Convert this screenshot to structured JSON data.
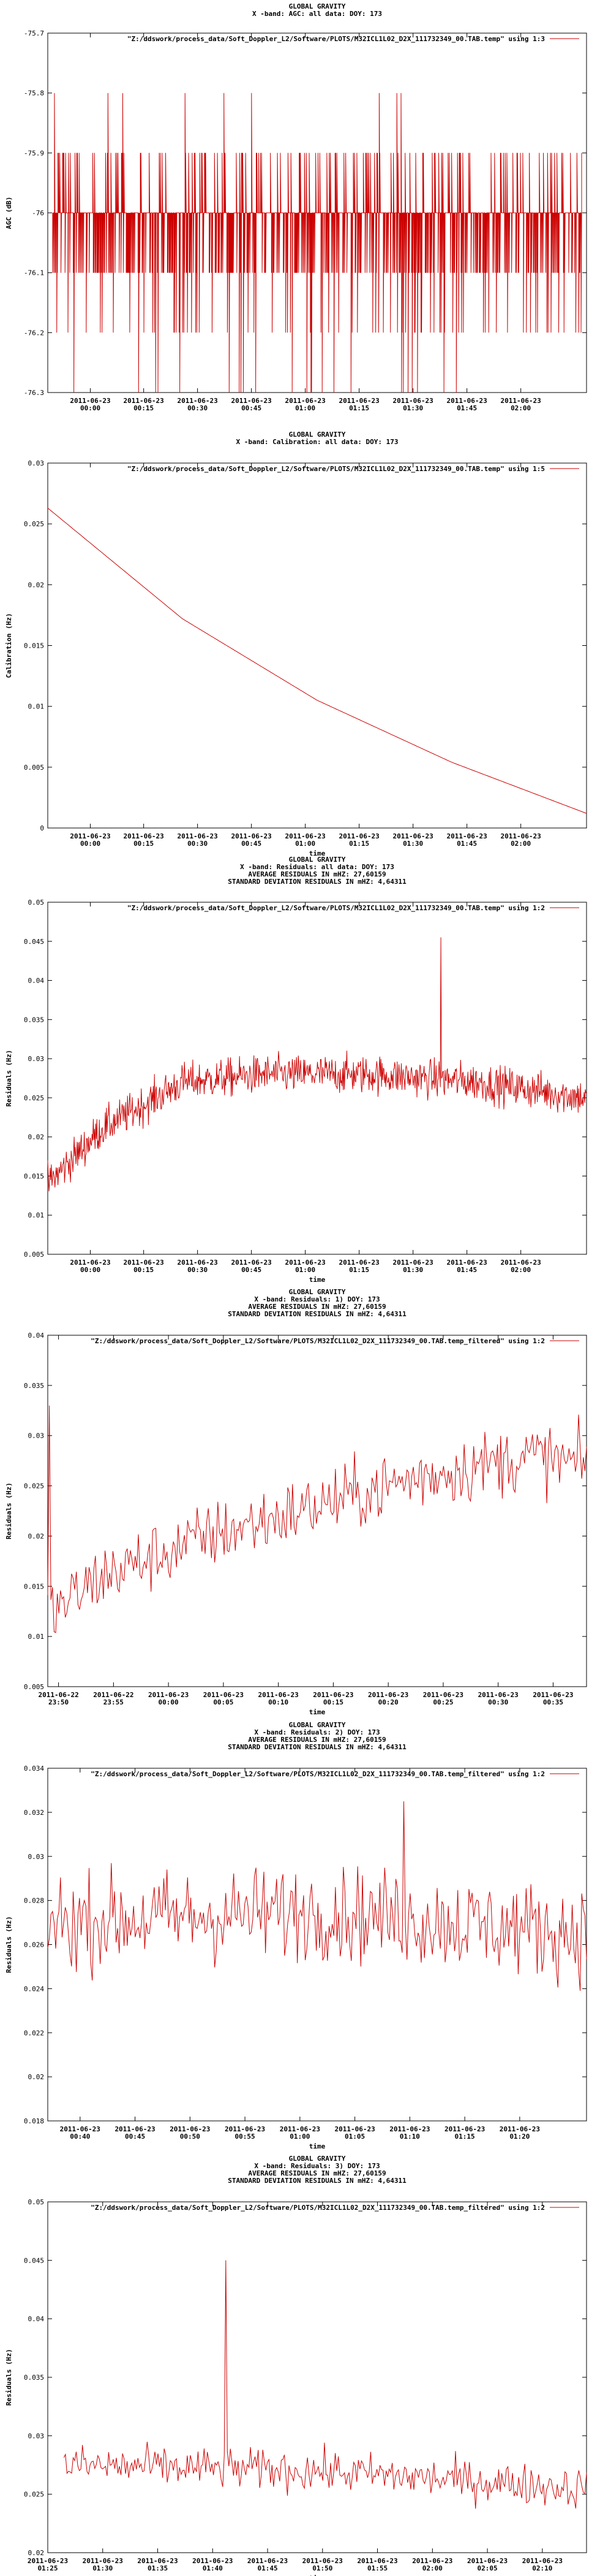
{
  "chart_data": [
    {
      "type": "line",
      "title": [
        "GLOBAL GRAVITY",
        "X -band: AGC: all data: DOY: 173"
      ],
      "legend": "\"Z:/ddswork/process_data/Soft_Doppler_L2/Software/PLOTS/M32ICL1L02_D2X_111732349_00.TAB.temp\" using 1:3",
      "legend_position": "top-right",
      "xlabel": "",
      "ylabel": "AGC (dB)",
      "ylim": [
        -76.3,
        -75.7
      ],
      "y_ticks": [
        "-76.3",
        "-76.2",
        "-76.1",
        "-76",
        "-75.9",
        "-75.8",
        "-75.7"
      ],
      "xlim": [
        "2011-06-22 23:49",
        "2011-06-23 02:14"
      ],
      "x_ticks": [
        [
          "2011-06-23",
          "00:00"
        ],
        [
          "2011-06-23",
          "00:15"
        ],
        [
          "2011-06-23",
          "00:30"
        ],
        [
          "2011-06-23",
          "00:45"
        ],
        [
          "2011-06-23",
          "01:00"
        ],
        [
          "2011-06-23",
          "01:15"
        ],
        [
          "2011-06-23",
          "01:30"
        ],
        [
          "2011-06-23",
          "01:45"
        ],
        [
          "2011-06-23",
          "02:00"
        ]
      ],
      "series": [
        {
          "levels": [
            -76.0,
            -76.1,
            -75.9,
            -76.2,
            -76.3,
            -75.8
          ],
          "baseline": -76.0
        }
      ],
      "color": "#cc0000"
    },
    {
      "type": "line",
      "title": [
        "GLOBAL GRAVITY",
        "X -band: Calibration: all data: DOY: 173"
      ],
      "legend": "\"Z:/ddswork/process_data/Soft_Doppler_L2/Software/PLOTS/M32ICL1L02_D2X_111732349_00.TAB.temp\" using 1:5",
      "legend_position": "top-right",
      "xlabel": "time",
      "ylabel": "Calibration (Hz)",
      "ylim": [
        0,
        0.03
      ],
      "y_ticks": [
        "0",
        "0.005",
        "0.01",
        "0.015",
        "0.02",
        "0.025",
        "0.03"
      ],
      "xlim": [
        "2011-06-22 23:49",
        "2011-06-23 02:14"
      ],
      "x_ticks": [
        [
          "2011-06-23",
          "00:00"
        ],
        [
          "2011-06-23",
          "00:15"
        ],
        [
          "2011-06-23",
          "00:30"
        ],
        [
          "2011-06-23",
          "00:45"
        ],
        [
          "2011-06-23",
          "01:00"
        ],
        [
          "2011-06-23",
          "01:15"
        ],
        [
          "2011-06-23",
          "01:30"
        ],
        [
          "2011-06-23",
          "01:45"
        ],
        [
          "2011-06-23",
          "02:00"
        ]
      ],
      "series": [
        {
          "x_min_from_start": [
            0,
            36,
            72,
            108,
            145
          ],
          "values": [
            0.0263,
            0.0172,
            0.0105,
            0.0054,
            0.0012
          ]
        }
      ],
      "color": "#cc0000"
    },
    {
      "type": "line",
      "title": [
        "GLOBAL GRAVITY",
        "X -band: Residuals: all data: DOY: 173",
        "AVERAGE RESIDUALS IN mHZ: 27,60159",
        "STANDARD DEVIATION RESIDUALS IN mHZ: 4,64311"
      ],
      "legend": "\"Z:/ddswork/process_data/Soft_Doppler_L2/Software/PLOTS/M32ICL1L02_D2X_111732349_00.TAB.temp\" using 1:2",
      "legend_position": "top-right",
      "xlabel": "time",
      "ylabel": "Residuals (Hz)",
      "ylim": [
        0.005,
        0.05
      ],
      "y_ticks": [
        "0.005",
        "0.01",
        "0.015",
        "0.02",
        "0.025",
        "0.03",
        "0.035",
        "0.04",
        "0.045",
        "0.05"
      ],
      "xlim": [
        "2011-06-22 23:49",
        "2011-06-23 02:14"
      ],
      "x_ticks": [
        [
          "2011-06-23",
          "00:00"
        ],
        [
          "2011-06-23",
          "00:15"
        ],
        [
          "2011-06-23",
          "00:30"
        ],
        [
          "2011-06-23",
          "00:45"
        ],
        [
          "2011-06-23",
          "01:00"
        ],
        [
          "2011-06-23",
          "01:15"
        ],
        [
          "2011-06-23",
          "01:30"
        ],
        [
          "2011-06-23",
          "01:45"
        ],
        [
          "2011-06-23",
          "02:00"
        ]
      ],
      "series": [
        {
          "x_frac": [
            0,
            0.1,
            0.25,
            0.4,
            0.6,
            0.8,
            1
          ],
          "values": [
            0.014,
            0.021,
            0.027,
            0.028,
            0.028,
            0.027,
            0.025
          ],
          "noise": 0.0025,
          "spike_at_frac": 0.73,
          "spike_value": 0.0455
        }
      ],
      "color": "#cc0000"
    },
    {
      "type": "line",
      "title": [
        "GLOBAL GRAVITY",
        "X -band: Residuals: 1) DOY: 173",
        "AVERAGE RESIDUALS IN mHZ: 27,60159",
        "STANDARD DEVIATION RESIDUALS IN mHZ: 4,64311"
      ],
      "legend": "\"Z:/ddswork/process_data/Soft_Doppler_L2/Software/PLOTS/M32ICL1L02_D2X_111732349_00.TAB.temp_filtered\" using 1:2",
      "legend_position": "top-right",
      "xlabel": "time",
      "ylabel": "Residuals (Hz)",
      "ylim": [
        0.005,
        0.04
      ],
      "y_ticks": [
        "0.005",
        "0.01",
        "0.015",
        "0.02",
        "0.025",
        "0.03",
        "0.035",
        "0.04"
      ],
      "xlim": [
        "2011-06-22 23:49",
        "2011-06-23 00:38"
      ],
      "x_ticks": [
        [
          "2011-06-22",
          "23:50"
        ],
        [
          "2011-06-22",
          "23:55"
        ],
        [
          "2011-06-23",
          "00:00"
        ],
        [
          "2011-06-23",
          "00:05"
        ],
        [
          "2011-06-23",
          "00:10"
        ],
        [
          "2011-06-23",
          "00:15"
        ],
        [
          "2011-06-23",
          "00:20"
        ],
        [
          "2011-06-23",
          "00:25"
        ],
        [
          "2011-06-23",
          "00:30"
        ],
        [
          "2011-06-23",
          "00:35"
        ]
      ],
      "series": [
        {
          "x_frac": [
            0,
            0.1,
            0.3,
            0.5,
            0.7,
            0.9,
            1
          ],
          "values": [
            0.012,
            0.016,
            0.02,
            0.023,
            0.026,
            0.028,
            0.027
          ],
          "noise": 0.0035,
          "spike_at_frac": 0.003,
          "spike_value": 0.033
        }
      ],
      "color": "#cc0000"
    },
    {
      "type": "line",
      "title": [
        "GLOBAL GRAVITY",
        "X -band: Residuals: 2) DOY: 173",
        "AVERAGE RESIDUALS IN mHZ: 27,60159",
        "STANDARD DEVIATION RESIDUALS IN mHZ: 4,64311"
      ],
      "legend": "\"Z:/ddswork/process_data/Soft_Doppler_L2/Software/PLOTS/M32ICL1L02_D2X_111732349_00.TAB.temp_filtered\" using 1:2",
      "legend_position": "top-right",
      "xlabel": "time",
      "ylabel": "Residuals (Hz)",
      "ylim": [
        0.018,
        0.034
      ],
      "y_ticks": [
        "0.018",
        "0.02",
        "0.022",
        "0.024",
        "0.026",
        "0.028",
        "0.03",
        "0.032",
        "0.034"
      ],
      "xlim": [
        "2011-06-23 00:37",
        "2011-06-23 01:26"
      ],
      "x_ticks": [
        [
          "2011-06-23",
          "00:40"
        ],
        [
          "2011-06-23",
          "00:45"
        ],
        [
          "2011-06-23",
          "00:50"
        ],
        [
          "2011-06-23",
          "00:55"
        ],
        [
          "2011-06-23",
          "01:00"
        ],
        [
          "2011-06-23",
          "01:05"
        ],
        [
          "2011-06-23",
          "01:10"
        ],
        [
          "2011-06-23",
          "01:15"
        ],
        [
          "2011-06-23",
          "01:20"
        ]
      ],
      "series": [
        {
          "x_frac": [
            0,
            0.5,
            1
          ],
          "values": [
            0.027,
            0.0275,
            0.0265
          ],
          "noise": 0.0022,
          "spike_at_frac": 0.66,
          "spike_value": 0.0325
        }
      ],
      "color": "#cc0000"
    },
    {
      "type": "line",
      "title": [
        "GLOBAL GRAVITY",
        "X -band: Residuals: 3) DOY: 173",
        "AVERAGE RESIDUALS IN mHZ: 27,60159",
        "STANDARD DEVIATION RESIDUALS IN mHZ: 4,64311"
      ],
      "legend": "\"Z:/ddswork/process_data/Soft_Doppler_L2/Software/PLOTS/M32ICL1L02_D2X_111732349_00.TAB.temp_filtered\" using 1:2",
      "legend_position": "top-right",
      "xlabel": "time",
      "ylabel": "Residuals (Hz)",
      "ylim": [
        0.02,
        0.05
      ],
      "y_ticks": [
        "0.02",
        "0.025",
        "0.03",
        "0.035",
        "0.04",
        "0.045",
        "0.05"
      ],
      "xlim": [
        "2011-06-23 01:25",
        "2011-06-23 02:14"
      ],
      "x_ticks": [
        [
          "2011-06-23",
          "01:25"
        ],
        [
          "2011-06-23",
          "01:30"
        ],
        [
          "2011-06-23",
          "01:35"
        ],
        [
          "2011-06-23",
          "01:40"
        ],
        [
          "2011-06-23",
          "01:45"
        ],
        [
          "2011-06-23",
          "01:50"
        ],
        [
          "2011-06-23",
          "01:55"
        ],
        [
          "2011-06-23",
          "02:00"
        ],
        [
          "2011-06-23",
          "02:05"
        ],
        [
          "2011-06-23",
          "02:10"
        ]
      ],
      "series": [
        {
          "x_frac": [
            0.03,
            0.5,
            1
          ],
          "values": [
            0.0275,
            0.027,
            0.0255
          ],
          "noise": 0.0018,
          "spike_at_frac": 0.33,
          "spike_value": 0.045
        }
      ],
      "color": "#cc0000"
    }
  ]
}
